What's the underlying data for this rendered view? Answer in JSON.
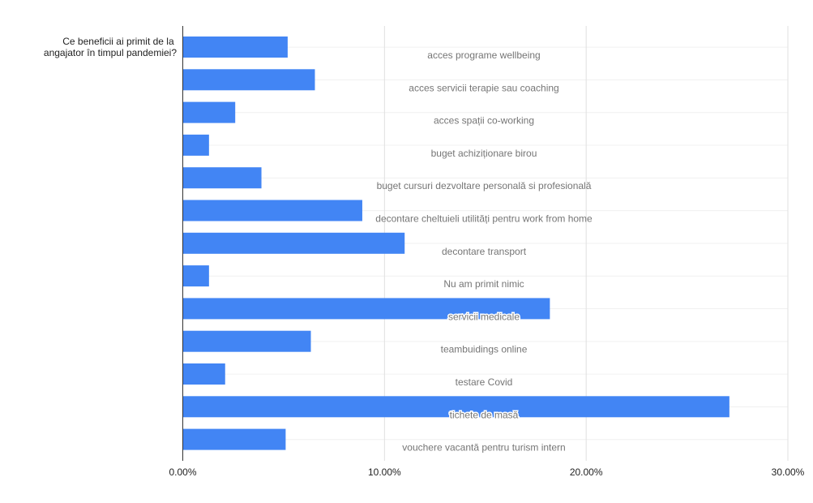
{
  "chart_data": {
    "type": "bar",
    "orientation": "horizontal",
    "ylabel_lines": [
      "Ce beneficii ai primit de la",
      "angajator în timpul pandemiei?"
    ],
    "categories": [
      "acces programe wellbeing",
      "acces servicii terapie sau coaching",
      "acces spații co-working",
      "buget achiziționare birou",
      "buget cursuri dezvoltare personală si profesională",
      "decontare cheltuieli utilități pentru work from home",
      "decontare transport",
      "Nu am primit nimic",
      "servicii medicale",
      "teambuidings online",
      "testare Covid",
      "tichete de masă",
      "vouchere vacantă pentru turism intern"
    ],
    "values": [
      5.2,
      6.55,
      2.6,
      1.3,
      3.9,
      8.9,
      11.0,
      1.3,
      18.2,
      6.35,
      2.1,
      27.1,
      5.1
    ],
    "xlim": [
      0,
      30
    ],
    "xticks": [
      "0.00%",
      "10.00%",
      "20.00%",
      "30.00%"
    ],
    "grid": true,
    "colors": {
      "bar": "#4285f4",
      "grid": "#e0e0e0",
      "axis": "#333333"
    }
  }
}
